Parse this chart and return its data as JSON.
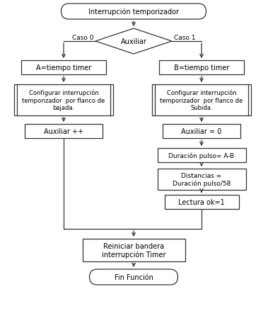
{
  "title": "Interrupción temporizador",
  "diamond": "Auxiliar",
  "caso0": "Caso 0",
  "caso1": "Caso 1",
  "box_A": "A=tiempo timer",
  "box_B": "B=tiempo timer",
  "box_cfg_bajada": "Configurar interrupción\ntemporizador  por flanco de\nbajada.",
  "box_cfg_subida": "Configurar interrupción\ntemporizador  por flanco de\nSubida.",
  "box_aux_pp": "Auxiliar ++",
  "box_aux_0": "Auxiliar = 0",
  "box_duracion": "Duración pulso= A-B",
  "box_distancias": "Distancias =\nDuración pulso/58",
  "box_lectura": "Lectura ok=1",
  "box_reiniciar": "Reiniciar bandera\ninterrupción Timer",
  "box_fin": "Fin Función",
  "bg_color": "#ffffff",
  "line_color": "#333333",
  "text_color": "#000000",
  "font_size": 7.0
}
